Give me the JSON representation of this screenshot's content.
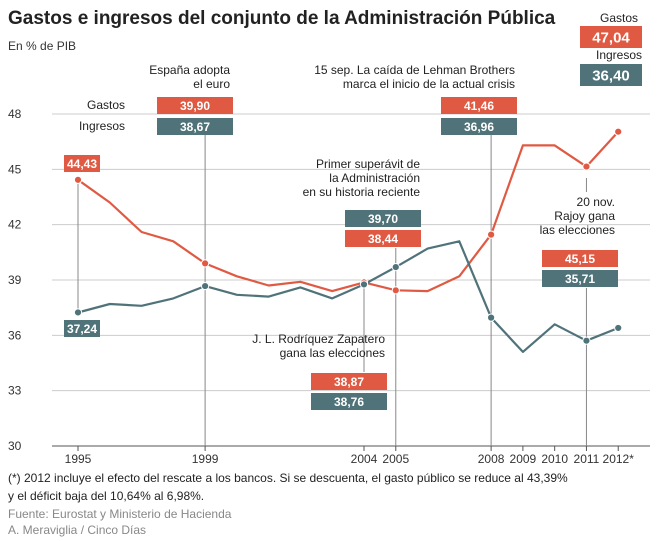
{
  "title": "Gastos e ingresos del conjunto de la Administración Pública",
  "subtitle": "En % de PIB",
  "footnote_line1": "(*) 2012 incluye el efecto del rescate a los bancos. Si se descuenta, el gasto público se reduce al 43,39%",
  "footnote_line2": "y el déficit baja del 10,64% al 6,98%.",
  "source_line1": "Fuente: Eurostat y Ministerio de Hacienda",
  "source_line2": "A. Meraviglia / Cinco Días",
  "colors": {
    "gastos": "#e05a43",
    "ingresos": "#50737a",
    "axis": "#555555",
    "grid": "#cccccc"
  },
  "chart_data": {
    "type": "line",
    "title": "Gastos e ingresos del conjunto de la Administración Pública",
    "ylabel": "En % de PIB",
    "ylim": [
      30,
      48
    ],
    "yticks": [
      30,
      33,
      36,
      39,
      42,
      45,
      48
    ],
    "x": [
      1995,
      1996,
      1997,
      1998,
      1999,
      2000,
      2001,
      2002,
      2003,
      2004,
      2005,
      2006,
      2007,
      2008,
      2009,
      2010,
      2011,
      2012
    ],
    "xtick_labels": [
      {
        "x": 1995,
        "label": "1995"
      },
      {
        "x": 1999,
        "label": "1999"
      },
      {
        "x": 2004,
        "label": "2004"
      },
      {
        "x": 2005,
        "label": "2005"
      },
      {
        "x": 2008,
        "label": "2008"
      },
      {
        "x": 2009,
        "label": "2009"
      },
      {
        "x": 2010,
        "label": "2010"
      },
      {
        "x": 2011,
        "label": "2011"
      },
      {
        "x": 2012,
        "label": "2012*"
      }
    ],
    "series": [
      {
        "name": "Gastos",
        "color": "#e05a43",
        "values": [
          44.43,
          43.2,
          41.6,
          41.1,
          39.9,
          39.2,
          38.7,
          38.9,
          38.4,
          38.87,
          38.44,
          38.4,
          39.2,
          41.46,
          46.3,
          46.3,
          45.15,
          47.04
        ]
      },
      {
        "name": "Ingresos",
        "color": "#50737a",
        "values": [
          37.24,
          37.7,
          37.6,
          38.0,
          38.67,
          38.2,
          38.1,
          38.6,
          38.0,
          38.76,
          39.7,
          40.7,
          41.1,
          36.96,
          35.1,
          36.6,
          35.71,
          36.4
        ]
      }
    ],
    "annotations": [
      {
        "id": "a1995",
        "x": 1995,
        "text_lines": [],
        "labels": [
          {
            "series": "Gastos",
            "value": "44,43"
          },
          {
            "series": "Ingresos",
            "value": "37,24"
          }
        ]
      },
      {
        "id": "a1999",
        "x": 1999,
        "text_lines": [
          "España adopta",
          "el euro"
        ],
        "labels": [
          {
            "series": "Gastos",
            "value": "39,90"
          },
          {
            "series": "Ingresos",
            "value": "38,67"
          }
        ],
        "legend": [
          "Gastos",
          "Ingresos"
        ]
      },
      {
        "id": "a2004",
        "x": 2004,
        "text_lines": [
          "J. L. Rodríquez Zapatero",
          "gana las elecciones"
        ],
        "labels": [
          {
            "series": "Gastos",
            "value": "38,87"
          },
          {
            "series": "Ingresos",
            "value": "38,76"
          }
        ]
      },
      {
        "id": "a2005",
        "x": 2005,
        "text_lines": [
          "Primer superávit de",
          "la Administración",
          "en su historia reciente"
        ],
        "labels": [
          {
            "series": "Ingresos",
            "value": "39,70"
          },
          {
            "series": "Gastos",
            "value": "38,44"
          }
        ]
      },
      {
        "id": "a2008",
        "x": 2008,
        "text_lines": [
          "15 sep. La caída de Lehman Brothers",
          "marca el inicio de la actual crisis"
        ],
        "labels": [
          {
            "series": "Gastos",
            "value": "41,46"
          },
          {
            "series": "Ingresos",
            "value": "36,96"
          }
        ]
      },
      {
        "id": "a2011",
        "x": 2011,
        "text_lines": [
          "20 nov.",
          "Rajoy gana",
          "las elecciones"
        ],
        "labels": [
          {
            "series": "Gastos",
            "value": "45,15"
          },
          {
            "series": "Ingresos",
            "value": "35,71"
          }
        ]
      },
      {
        "id": "a2012",
        "x": 2012,
        "text_lines": [],
        "labels": [
          {
            "series": "Gastos",
            "value": "47,04"
          },
          {
            "series": "Ingresos",
            "value": "36,40"
          }
        ],
        "legend": [
          "Gastos",
          "Ingresos"
        ]
      }
    ]
  }
}
